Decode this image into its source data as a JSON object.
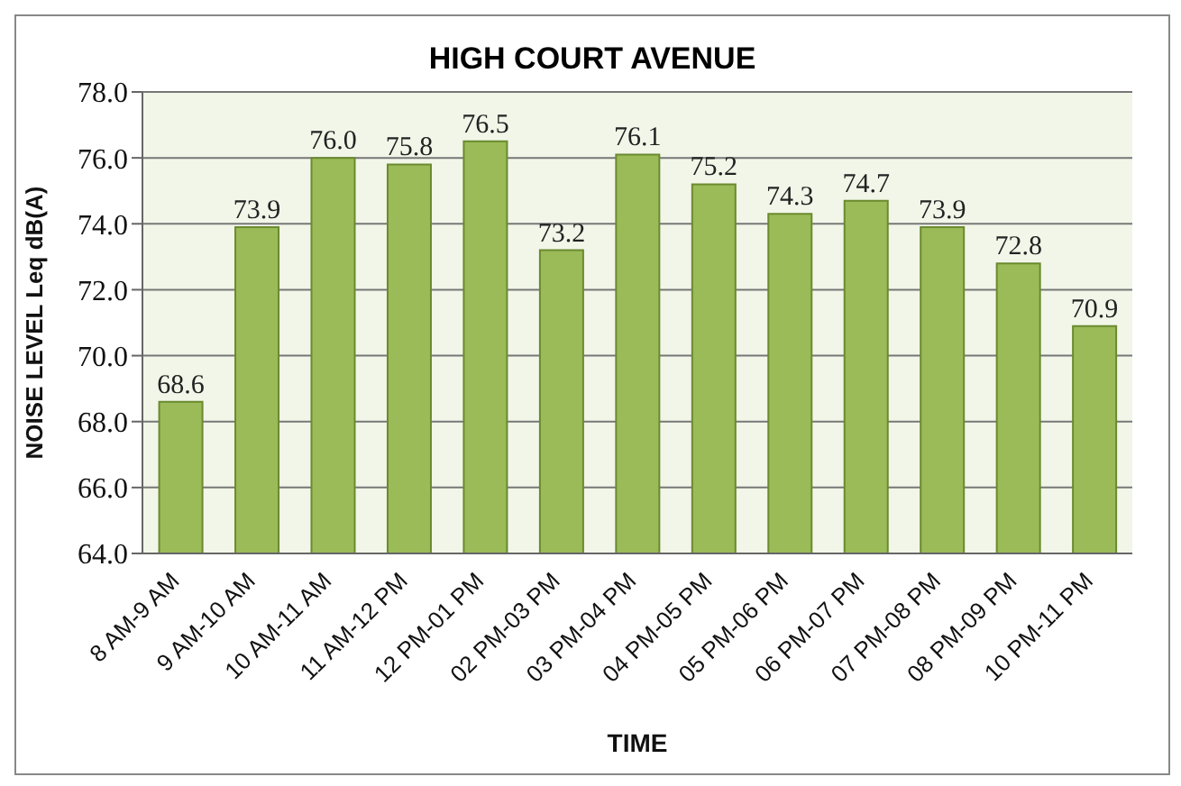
{
  "chart_data": {
    "type": "bar",
    "title": "HIGH COURT AVENUE",
    "xlabel": "TIME",
    "ylabel": "NOISE LEVEL Leq dB(A)",
    "categories": [
      "8 AM-9 AM",
      "9 AM-10 AM",
      "10 AM-11 AM",
      "11 AM-12 PM",
      "12 PM-01 PM",
      "02 PM-03 PM",
      "03 PM-04 PM",
      "04 PM-05 PM",
      "05 PM-06 PM",
      "06 PM-07 PM",
      "07 PM-08 PM",
      "08 PM-09 PM",
      "10 PM-11 PM"
    ],
    "values": [
      68.6,
      73.9,
      76.0,
      75.8,
      76.5,
      73.2,
      76.1,
      75.2,
      74.3,
      74.7,
      73.9,
      72.8,
      70.9
    ],
    "value_labels": [
      "68.6",
      "73.9",
      "76.0",
      "75.8",
      "76.5",
      "73.2",
      "76.1",
      "75.2",
      "74.3",
      "74.7",
      "73.9",
      "72.8",
      "70.9"
    ],
    "color": "#9bbb59",
    "ylim": [
      64,
      78
    ],
    "yticks": [
      {
        "value": 64,
        "label": "64.0"
      },
      {
        "value": 66,
        "label": "66.0"
      },
      {
        "value": 68,
        "label": "68.0"
      },
      {
        "value": 70,
        "label": "70.0"
      },
      {
        "value": 72,
        "label": "72.0"
      },
      {
        "value": 74,
        "label": "74.0"
      },
      {
        "value": 76,
        "label": "76.0"
      },
      {
        "value": 78,
        "label": "78.0"
      }
    ],
    "grid": "y"
  }
}
